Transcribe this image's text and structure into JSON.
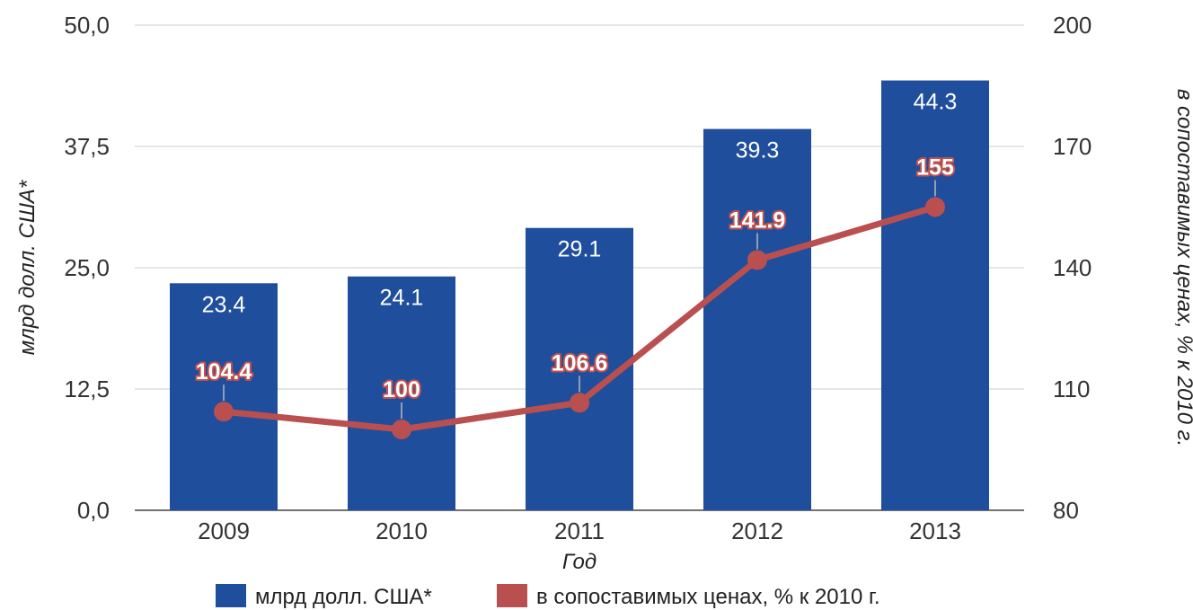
{
  "chart_data": {
    "type": "bar",
    "categories": [
      "2009",
      "2010",
      "2011",
      "2012",
      "2013"
    ],
    "xlabel": "Год",
    "ylabel": "млрд долл. США*",
    "ylabel_right": "в сопоставимых ценах, % к 2010 г.",
    "ylim": [
      0,
      50
    ],
    "ylim_right": [
      80,
      200
    ],
    "yticks_left": [
      "0,0",
      "12,5",
      "25,0",
      "37,5",
      "50,0"
    ],
    "yticks_right": [
      "80",
      "110",
      "140",
      "170",
      "200"
    ],
    "grid": true,
    "legend_position": "bottom",
    "series": [
      {
        "name": "млрд долл. США*",
        "type": "bar",
        "axis": "left",
        "color": "#1f4e9c",
        "values": [
          23.4,
          24.1,
          29.1,
          39.3,
          44.3
        ],
        "labels": [
          "23.4",
          "24.1",
          "29.1",
          "39.3",
          "44.3"
        ]
      },
      {
        "name": "в сопоставимых ценах, % к 2010 г.",
        "type": "line",
        "axis": "right",
        "color": "#b9504f",
        "values": [
          104.4,
          100,
          106.6,
          141.9,
          155
        ],
        "labels": [
          "104.4",
          "100",
          "106.6",
          "141.9",
          "155"
        ]
      }
    ]
  }
}
